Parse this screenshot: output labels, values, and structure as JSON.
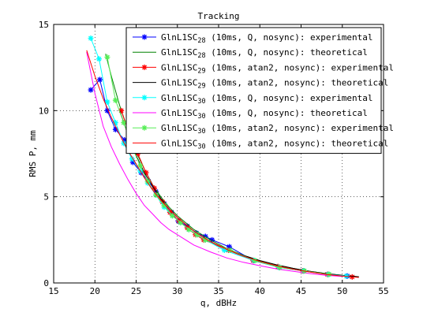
{
  "chart_data": {
    "type": "line",
    "title": "Tracking",
    "xlabel": "q, dBHz",
    "ylabel": "RMS P, mm",
    "xlim": [
      15,
      55
    ],
    "ylim": [
      0,
      15
    ],
    "xticks": [
      "15",
      "20",
      "25",
      "30",
      "35",
      "40",
      "45",
      "50",
      "55"
    ],
    "yticks": [
      "0",
      "5",
      "10",
      "15"
    ],
    "grid": true,
    "legend_position": "top-right",
    "series": [
      {
        "name": "GlnL1SC28 (10ms, Q, nosync): experimental",
        "name_base": "GlnL1SC",
        "name_sub": "28",
        "name_rest": " (10ms, Q, nosync): experimental",
        "color": "#0000ff",
        "marker": "asterisk",
        "x": [
          19.5,
          20.6,
          21.5,
          22.5,
          23.6,
          24.6,
          25.6,
          26.5,
          27.4,
          28.4,
          29.3,
          30.1,
          31.2,
          32.3,
          33.4,
          34.2,
          36.3,
          39.2,
          42.4,
          45.3,
          48.3,
          50.6
        ],
        "y": [
          11.2,
          11.8,
          10.0,
          8.9,
          8.3,
          7.0,
          6.4,
          5.9,
          5.3,
          4.6,
          4.1,
          3.6,
          3.3,
          2.9,
          2.7,
          2.5,
          2.1,
          1.3,
          0.9,
          0.7,
          0.5,
          0.4
        ]
      },
      {
        "name": "GlnL1SC28 (10ms, Q, nosync): theoretical",
        "name_base": "GlnL1SC",
        "name_sub": "28",
        "name_rest": " (10ms, Q, nosync): theoretical",
        "color": "#008000",
        "marker": "none",
        "x": [
          21.3,
          22.0,
          23.0,
          24.0,
          25.0,
          26.0,
          27.0,
          28.0,
          29.0,
          30.0,
          32.0,
          34.0,
          36.0,
          38.0,
          40.0,
          42.0,
          44.0,
          46.0,
          48.0,
          50.0,
          52.0
        ],
        "y": [
          13.3,
          12.0,
          10.3,
          8.9,
          7.6,
          6.6,
          5.7,
          5.0,
          4.4,
          3.9,
          3.1,
          2.5,
          2.0,
          1.6,
          1.3,
          1.05,
          0.85,
          0.68,
          0.55,
          0.45,
          0.36
        ]
      },
      {
        "name": "GlnL1SC29 (10ms, atan2, nosync): experimental",
        "name_base": "GlnL1SC",
        "name_sub": "29",
        "name_rest": " (10ms, atan2, nosync): experimental",
        "color": "#ff0000",
        "marker": "asterisk",
        "x": [
          23.2,
          24.2,
          25.2,
          26.2,
          27.2,
          28.2,
          29.1,
          30.2,
          31.2,
          32.2,
          33.2,
          36.2,
          39.2,
          42.2,
          45.2,
          48.2,
          51.2
        ],
        "y": [
          10.0,
          8.6,
          7.5,
          6.4,
          5.5,
          4.7,
          4.1,
          3.6,
          3.2,
          2.8,
          2.5,
          1.9,
          1.3,
          0.95,
          0.7,
          0.5,
          0.35
        ]
      },
      {
        "name": "GlnL1SC29 (10ms, atan2, nosync): theoretical",
        "name_base": "GlnL1SC",
        "name_sub": "29",
        "name_rest": " (10ms, atan2, nosync): theoretical",
        "color": "#000000",
        "marker": "none",
        "x": [
          23.0,
          24.0,
          25.0,
          26.0,
          27.0,
          28.0,
          29.0,
          30.0,
          32.0,
          34.0,
          36.0,
          38.0,
          40.0,
          42.0,
          44.0,
          46.0,
          48.0,
          50.0,
          52.0
        ],
        "y": [
          10.0,
          8.6,
          7.4,
          6.4,
          5.6,
          4.9,
          4.3,
          3.8,
          3.0,
          2.4,
          1.95,
          1.6,
          1.3,
          1.05,
          0.85,
          0.68,
          0.55,
          0.44,
          0.35
        ]
      },
      {
        "name": "GlnL1SC30 (10ms, Q, nosync): experimental",
        "name_base": "GlnL1SC",
        "name_sub": "30",
        "name_rest": " (10ms, Q, nosync): experimental",
        "color": "#00ffff",
        "marker": "asterisk",
        "x": [
          19.5,
          20.5,
          21.5,
          22.5,
          23.5,
          24.5,
          25.5,
          26.4,
          27.4,
          28.4,
          29.4,
          30.4,
          31.4,
          32.4,
          33.4,
          35.7,
          39.3,
          42.3,
          45.3,
          48.3,
          50.5
        ],
        "y": [
          14.2,
          13.0,
          10.5,
          9.3,
          8.1,
          7.2,
          6.5,
          5.8,
          5.1,
          4.4,
          3.9,
          3.5,
          3.1,
          2.8,
          2.5,
          1.9,
          1.3,
          0.9,
          0.7,
          0.5,
          0.4
        ]
      },
      {
        "name": "GlnL1SC30 (10ms, Q, nosync): theoretical",
        "name_base": "GlnL1SC",
        "name_sub": "30",
        "name_rest": " (10ms, Q, nosync): theoretical",
        "color": "#ff00ff",
        "marker": "none",
        "x": [
          19.0,
          20.0,
          21.0,
          22.0,
          23.0,
          24.0,
          25.0,
          26.0,
          27.0,
          28.0,
          29.0,
          30.0,
          32.0,
          34.0,
          36.0,
          38.0,
          40.0,
          42.0,
          44.0,
          46.0,
          48.0,
          50.0
        ],
        "y": [
          13.4,
          11.0,
          9.1,
          7.9,
          6.9,
          6.0,
          5.2,
          4.5,
          4.0,
          3.5,
          3.1,
          2.8,
          2.2,
          1.8,
          1.45,
          1.2,
          1.0,
          0.82,
          0.68,
          0.55,
          0.45,
          0.38
        ]
      },
      {
        "name": "GlnL1SC30 (10ms, atan2, nosync): experimental",
        "name_base": "GlnL1SC",
        "name_sub": "30",
        "name_rest": " (10ms, atan2, nosync): experimental",
        "color": "#55ee55",
        "marker": "asterisk",
        "x": [
          21.5,
          22.5,
          23.5,
          24.5,
          25.5,
          26.4,
          27.4,
          28.4,
          29.4,
          30.4,
          31.4,
          32.4,
          33.4,
          36.4,
          39.4,
          42.4,
          45.4,
          48.4
        ],
        "y": [
          13.1,
          10.6,
          9.3,
          7.9,
          6.8,
          5.9,
          5.1,
          4.5,
          3.9,
          3.5,
          3.1,
          2.8,
          2.5,
          1.9,
          1.3,
          0.9,
          0.7,
          0.5
        ]
      },
      {
        "name": "GlnL1SC30 (10ms, atan2, nosync): theoretical",
        "name_base": "GlnL1SC",
        "name_sub": "30",
        "name_rest": " (10ms, atan2, nosync): theoretical",
        "color": "#ff0000",
        "marker": "none",
        "x": [
          19.0,
          20.0,
          21.0,
          22.0,
          23.0,
          24.0,
          25.0,
          26.0,
          27.0,
          28.0,
          29.0,
          30.0,
          32.0,
          34.0,
          36.0,
          38.0,
          40.0,
          42.0,
          44.0,
          46.0,
          48.0,
          50.0,
          52.0
        ],
        "y": [
          13.5,
          12.0,
          10.7,
          9.6,
          8.6,
          7.7,
          6.9,
          6.1,
          5.4,
          4.8,
          4.3,
          3.8,
          3.0,
          2.4,
          1.95,
          1.55,
          1.25,
          1.0,
          0.8,
          0.64,
          0.5,
          0.4,
          0.32
        ]
      }
    ]
  }
}
